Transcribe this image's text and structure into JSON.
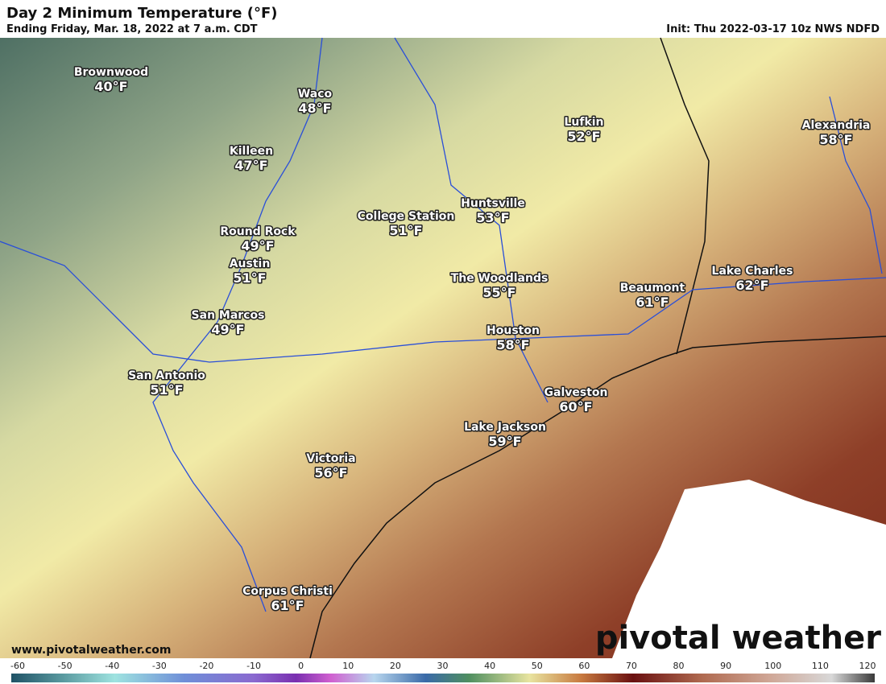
{
  "header": {
    "title": "Day 2 Minimum Temperature (°F)",
    "subtitle": "Ending Friday, Mar. 18, 2022 at 7 a.m. CDT",
    "init": "Init: Thu 2022-03-17 10z NWS NDFD"
  },
  "cities": [
    {
      "name": "Brownwood",
      "temp": "40°F"
    },
    {
      "name": "Waco",
      "temp": "48°F"
    },
    {
      "name": "Killeen",
      "temp": "47°F"
    },
    {
      "name": "Round Rock",
      "temp": "49°F"
    },
    {
      "name": "Austin",
      "temp": "51°F"
    },
    {
      "name": "San Marcos",
      "temp": "49°F"
    },
    {
      "name": "San Antonio",
      "temp": "51°F"
    },
    {
      "name": "College Station",
      "temp": "51°F"
    },
    {
      "name": "Huntsville",
      "temp": "53°F"
    },
    {
      "name": "Lufkin",
      "temp": "52°F"
    },
    {
      "name": "The Woodlands",
      "temp": "55°F"
    },
    {
      "name": "Houston",
      "temp": "58°F"
    },
    {
      "name": "Beaumont",
      "temp": "61°F"
    },
    {
      "name": "Lake Charles",
      "temp": "62°F"
    },
    {
      "name": "Alexandria",
      "temp": "58°F"
    },
    {
      "name": "Galveston",
      "temp": "60°F"
    },
    {
      "name": "Lake Jackson",
      "temp": "59°F"
    },
    {
      "name": "Victoria",
      "temp": "56°F"
    },
    {
      "name": "Corpus Christi",
      "temp": "61°F"
    }
  ],
  "footer": {
    "website": "www.pivotalweather.com",
    "logo": "pivotal weather"
  },
  "colorbar": {
    "ticks": [
      -60,
      -50,
      -40,
      -30,
      -20,
      -10,
      0,
      10,
      20,
      30,
      40,
      50,
      60,
      70,
      80,
      90,
      100,
      110,
      120
    ]
  }
}
